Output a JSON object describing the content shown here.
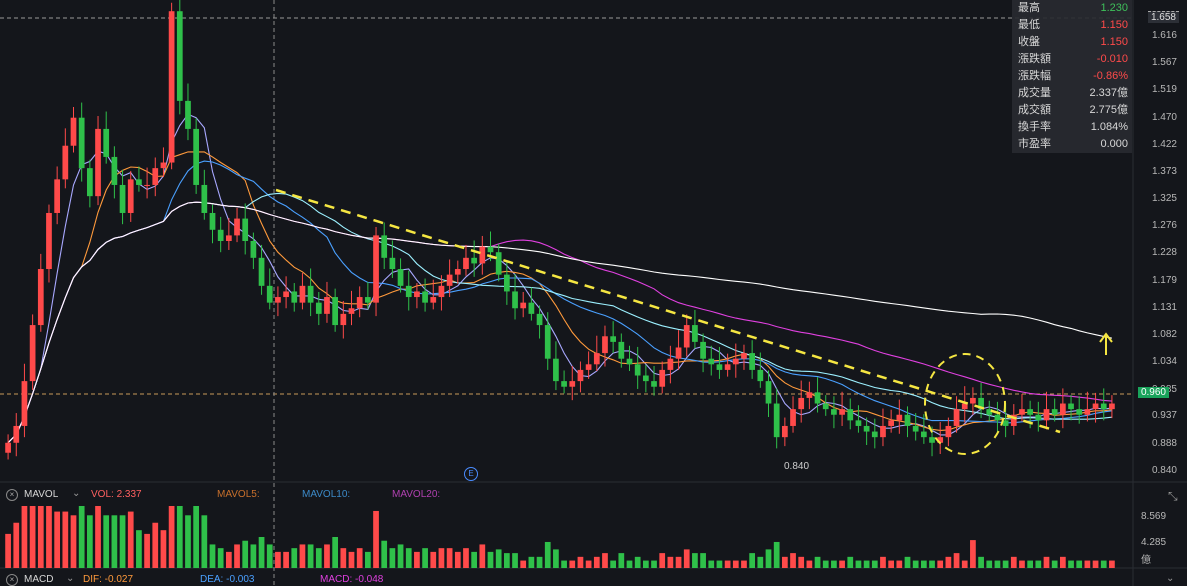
{
  "info": {
    "rows": [
      {
        "label": "最高",
        "value": "1.230",
        "color": "#3ec05a"
      },
      {
        "label": "最低",
        "value": "1.150",
        "color": "#ff4a4a"
      },
      {
        "label": "收盤",
        "value": "1.150",
        "color": "#ff4a4a"
      },
      {
        "label": "漲跌額",
        "value": "-0.010",
        "color": "#ff4a4a"
      },
      {
        "label": "漲跌幅",
        "value": "-0.86%",
        "color": "#ff4a4a"
      },
      {
        "label": "成交量",
        "value": "2.337億",
        "color": "#d8d8d8"
      },
      {
        "label": "成交額",
        "value": "2.775億",
        "color": "#d8d8d8"
      },
      {
        "label": "換手率",
        "value": "1.084%",
        "color": "#d8d8d8"
      },
      {
        "label": "市盈率",
        "value": "0.000",
        "color": "#d8d8d8"
      }
    ]
  },
  "price_axis": {
    "ticks": [
      "1.616",
      "1.567",
      "1.519",
      "1.470",
      "1.422",
      "1.373",
      "1.325",
      "1.276",
      "1.228",
      "1.179",
      "1.131",
      "1.082",
      "1.034",
      "0.985",
      "0.937",
      "0.888",
      "0.840"
    ],
    "top_marker": "1.658",
    "current_price": "0.960",
    "low_label": "0.840",
    "event_marker": "E"
  },
  "volume_panel": {
    "indicator": "MAVOL",
    "vol_label": "VOL: 2.337",
    "ma5_label": "MAVOL5:",
    "ma10_label": "MAVOL10:",
    "ma20_label": "MAVOL20:",
    "ticks": [
      "8.569",
      "4.285"
    ],
    "unit": "億"
  },
  "macd_panel": {
    "indicator": "MACD",
    "dif_label": "DIF: -0.027",
    "dea_label": "DEA: -0.003",
    "macd_label": "MACD: -0.048"
  },
  "colors": {
    "up": "#ff4a4a",
    "down": "#2fc04a",
    "ma5": "#a8a8ff",
    "ma10": "#ff9a3c",
    "ma20": "#4aa0ff",
    "ma30": "#9cf0ff",
    "ma60": "#e040e0",
    "ma120": "#ffffff",
    "trend": "#f5e642"
  },
  "chart_data": {
    "type": "candlestick",
    "ylim": [
      0.82,
      1.68
    ],
    "closes": [
      0.89,
      0.92,
      1.0,
      1.1,
      1.2,
      1.3,
      1.36,
      1.42,
      1.47,
      1.38,
      1.33,
      1.45,
      1.4,
      1.35,
      1.3,
      1.36,
      1.35,
      1.35,
      1.38,
      1.39,
      1.66,
      1.5,
      1.45,
      1.35,
      1.3,
      1.27,
      1.25,
      1.26,
      1.29,
      1.25,
      1.22,
      1.17,
      1.14,
      1.15,
      1.16,
      1.14,
      1.17,
      1.14,
      1.12,
      1.15,
      1.1,
      1.12,
      1.13,
      1.15,
      1.14,
      1.26,
      1.22,
      1.2,
      1.17,
      1.15,
      1.16,
      1.14,
      1.15,
      1.17,
      1.19,
      1.2,
      1.22,
      1.21,
      1.24,
      1.23,
      1.19,
      1.16,
      1.13,
      1.14,
      1.12,
      1.1,
      1.04,
      1.0,
      0.99,
      1.0,
      1.02,
      1.03,
      1.05,
      1.08,
      1.07,
      1.04,
      1.03,
      1.01,
      1.0,
      0.99,
      1.02,
      1.04,
      1.06,
      1.1,
      1.07,
      1.04,
      1.03,
      1.02,
      1.03,
      1.04,
      1.05,
      1.02,
      1.0,
      0.96,
      0.9,
      0.92,
      0.95,
      0.97,
      0.98,
      0.96,
      0.95,
      0.94,
      0.95,
      0.93,
      0.92,
      0.91,
      0.9,
      0.92,
      0.93,
      0.94,
      0.92,
      0.91,
      0.9,
      0.89,
      0.9,
      0.92,
      0.95,
      0.96,
      0.97,
      0.95,
      0.94,
      0.93,
      0.92,
      0.94,
      0.95,
      0.94,
      0.93,
      0.95,
      0.94,
      0.96,
      0.95,
      0.94,
      0.95,
      0.96,
      0.95,
      0.96
    ]
  }
}
